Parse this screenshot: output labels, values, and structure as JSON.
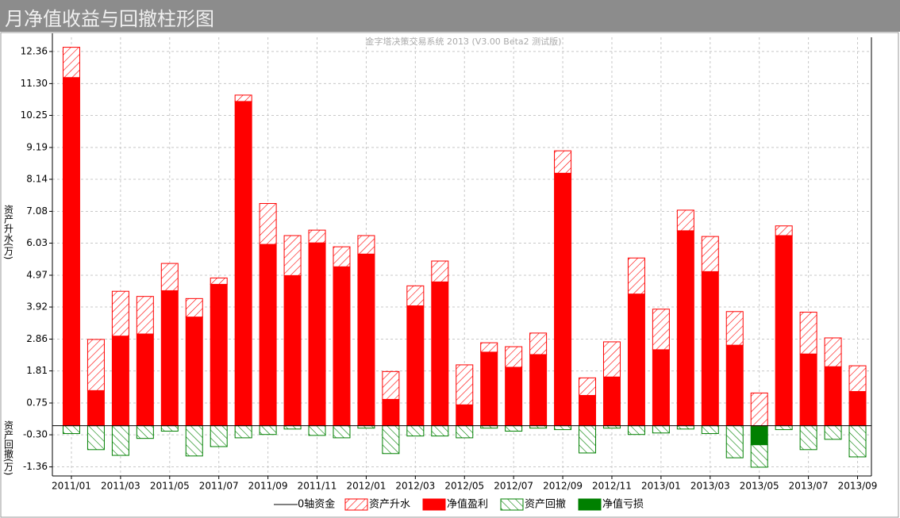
{
  "page_title": "月净值收益与回撤柱形图",
  "chart_data": {
    "type": "bar",
    "title": "金字塔决策交易系统 2013 (V3.00 Beta2 测试版)",
    "y_label_top": "资产升水(万)",
    "y_label_bottom": "资产回撤(万)",
    "categories": [
      "2011/01",
      null,
      "2011/03",
      null,
      "2011/05",
      null,
      "2011/07",
      null,
      "2011/09",
      null,
      "2011/11",
      null,
      "2012/01",
      null,
      "2012/03",
      null,
      "2012/05",
      null,
      "2012/07",
      null,
      "2012/09",
      null,
      "2012/11",
      null,
      "2013/01",
      null,
      "2013/03",
      null,
      "2013/05",
      null,
      "2013/07",
      null,
      "2013/09"
    ],
    "ylim": [
      -1.66,
      12.83
    ],
    "yticks": [
      12.36,
      {
        "value": 11.3,
        "label": "11.30"
      },
      10.25,
      9.19,
      8.14,
      7.08,
      6.03,
      4.97,
      3.92,
      2.86,
      1.81,
      0.75,
      {
        "value": -0.3,
        "label": "-0.30"
      },
      -1.36
    ],
    "grid": true,
    "series": [
      {
        "name": "0轴资金",
        "type": "line",
        "color": "#000000",
        "values": [
          0,
          0,
          0,
          0,
          0,
          0,
          0,
          0,
          0,
          0,
          0,
          0,
          0,
          0,
          0,
          0,
          0,
          0,
          0,
          0,
          0,
          0,
          0,
          0,
          0,
          0,
          0,
          0,
          0,
          0,
          0,
          0,
          0
        ]
      },
      {
        "name": "资产升水",
        "color": "#ff0000",
        "hatch": true,
        "values": [
          1.0,
          1.69,
          1.48,
          1.24,
          0.9,
          0.61,
          0.21,
          0.21,
          1.35,
          1.32,
          0.42,
          0.66,
          0.61,
          0.92,
          0.66,
          0.69,
          1.32,
          0.31,
          0.68,
          0.71,
          0.74,
          0.58,
          1.16,
          1.19,
          1.34,
          0.68,
          1.16,
          1.11,
          1.08,
          0.32,
          1.38,
          0.95,
          0.85
        ]
      },
      {
        "name": "净值盈利",
        "color": "#ff0000",
        "hatch": false,
        "values": [
          11.5,
          1.16,
          2.96,
          3.03,
          4.46,
          3.59,
          4.67,
          10.71,
          5.99,
          4.96,
          6.04,
          5.25,
          5.67,
          0.87,
          3.96,
          4.75,
          0.69,
          2.43,
          1.93,
          2.35,
          8.34,
          1.0,
          1.61,
          4.35,
          2.51,
          6.44,
          5.09,
          2.66,
          null,
          6.28,
          2.37,
          1.95,
          1.13
        ]
      },
      {
        "name": "资产回撤",
        "color": "#008000",
        "hatch": true,
        "values": [
          -0.26,
          -0.79,
          -0.98,
          -0.42,
          -0.18,
          -1.0,
          -0.69,
          -0.4,
          -0.29,
          -0.11,
          -0.32,
          -0.4,
          -0.08,
          -0.92,
          -0.34,
          -0.34,
          -0.4,
          -0.08,
          -0.18,
          -0.08,
          -0.13,
          -0.9,
          -0.08,
          -0.29,
          -0.24,
          -0.11,
          -0.26,
          -1.06,
          -0.74,
          -0.13,
          -0.79,
          -0.45,
          -1.03
        ]
      },
      {
        "name": "净值亏损",
        "color": "#008000",
        "hatch": false,
        "values": [
          null,
          null,
          null,
          null,
          null,
          null,
          null,
          null,
          null,
          null,
          null,
          null,
          null,
          null,
          null,
          null,
          null,
          null,
          null,
          null,
          null,
          null,
          null,
          null,
          null,
          null,
          null,
          null,
          -0.63,
          null,
          null,
          null,
          null
        ]
      }
    ]
  }
}
